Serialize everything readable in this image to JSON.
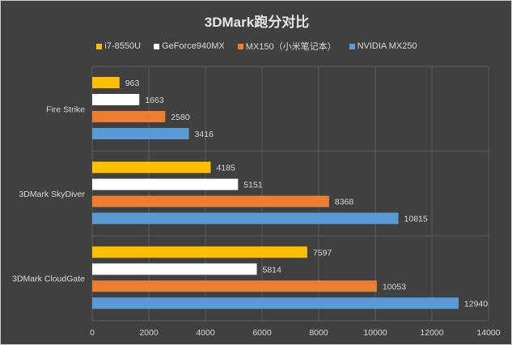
{
  "chart_data": {
    "type": "bar",
    "orientation": "horizontal",
    "title": "3DMark跑分对比",
    "categories": [
      "Fire Strike",
      "3DMark SkyDiver",
      "3DMark CloudGate"
    ],
    "series": [
      {
        "name": "i7-8550U",
        "color": "#ffc000",
        "values": [
          963,
          4185,
          7597
        ]
      },
      {
        "name": "GeForce940MX",
        "color": "#ffffff",
        "values": [
          1663,
          5151,
          5814
        ]
      },
      {
        "name": "MX150（小米笔记本）",
        "color": "#ed7d31",
        "values": [
          2580,
          8368,
          10053
        ]
      },
      {
        "name": "NVIDIA MX250",
        "color": "#5b9bd5",
        "values": [
          3416,
          10815,
          12940
        ]
      }
    ],
    "xlim": [
      0,
      14000
    ],
    "xticks": [
      0,
      2000,
      4000,
      6000,
      8000,
      10000,
      12000,
      14000
    ],
    "grid": true,
    "legend_position": "top",
    "background": "#404040"
  }
}
